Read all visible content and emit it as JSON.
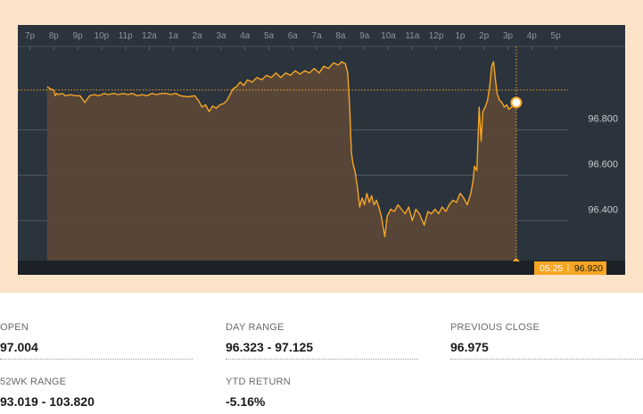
{
  "chart_data": {
    "type": "line",
    "x_ticks": [
      "7p",
      "8p",
      "9p",
      "10p",
      "11p",
      "12a",
      "1a",
      "2a",
      "3a",
      "4a",
      "5a",
      "6a",
      "7a",
      "8a",
      "9a",
      "10a",
      "11a",
      "12p",
      "1p",
      "2p",
      "3p",
      "4p",
      "5p"
    ],
    "y_ticks": [
      "96.800",
      "96.600",
      "96.400"
    ],
    "ylim": [
      96.24,
      97.12
    ],
    "reference_line": 96.975,
    "last_time": "05:25",
    "last_value": "96.920",
    "grid": true,
    "series": [
      {
        "color": "#f5a623",
        "points": [
          [
            0.72,
            96.99
          ],
          [
            0.85,
            96.98
          ],
          [
            1.0,
            96.975
          ],
          [
            1.06,
            96.95
          ],
          [
            1.12,
            96.96
          ],
          [
            1.2,
            96.955
          ],
          [
            1.35,
            96.96
          ],
          [
            1.5,
            96.95
          ],
          [
            1.7,
            96.955
          ],
          [
            1.9,
            96.95
          ],
          [
            2.1,
            96.95
          ],
          [
            2.3,
            96.92
          ],
          [
            2.5,
            96.95
          ],
          [
            2.7,
            96.955
          ],
          [
            2.9,
            96.95
          ],
          [
            3.1,
            96.96
          ],
          [
            3.3,
            96.955
          ],
          [
            3.5,
            96.96
          ],
          [
            3.7,
            96.955
          ],
          [
            3.9,
            96.96
          ],
          [
            4.1,
            96.955
          ],
          [
            4.3,
            96.96
          ],
          [
            4.5,
            96.95
          ],
          [
            4.7,
            96.955
          ],
          [
            4.9,
            96.95
          ],
          [
            5.1,
            96.96
          ],
          [
            5.3,
            96.955
          ],
          [
            5.5,
            96.96
          ],
          [
            5.7,
            96.96
          ],
          [
            5.9,
            96.955
          ],
          [
            6.1,
            96.96
          ],
          [
            6.3,
            96.95
          ],
          [
            6.6,
            96.945
          ],
          [
            6.9,
            96.95
          ],
          [
            7.05,
            96.93
          ],
          [
            7.2,
            96.9
          ],
          [
            7.35,
            96.91
          ],
          [
            7.5,
            96.88
          ],
          [
            7.65,
            96.905
          ],
          [
            7.8,
            96.895
          ],
          [
            7.95,
            96.91
          ],
          [
            8.1,
            96.915
          ],
          [
            8.25,
            96.93
          ],
          [
            8.35,
            96.95
          ],
          [
            8.5,
            96.98
          ],
          [
            8.65,
            96.99
          ],
          [
            8.8,
            97.01
          ],
          [
            8.95,
            96.995
          ],
          [
            9.1,
            97.02
          ],
          [
            9.3,
            97.01
          ],
          [
            9.5,
            97.03
          ],
          [
            9.7,
            97.02
          ],
          [
            9.9,
            97.04
          ],
          [
            10.1,
            97.03
          ],
          [
            10.3,
            97.05
          ],
          [
            10.5,
            97.03
          ],
          [
            10.7,
            97.05
          ],
          [
            10.9,
            97.04
          ],
          [
            11.1,
            97.06
          ],
          [
            11.3,
            97.045
          ],
          [
            11.5,
            97.06
          ],
          [
            11.7,
            97.05
          ],
          [
            11.9,
            97.07
          ],
          [
            12.1,
            97.05
          ],
          [
            12.3,
            97.08
          ],
          [
            12.5,
            97.07
          ],
          [
            12.7,
            97.095
          ],
          [
            12.9,
            97.085
          ],
          [
            13.05,
            97.1
          ],
          [
            13.2,
            97.09
          ],
          [
            13.3,
            97.05
          ],
          [
            13.38,
            96.9
          ],
          [
            13.45,
            96.7
          ],
          [
            13.52,
            96.65
          ],
          [
            13.6,
            96.62
          ],
          [
            13.7,
            96.55
          ],
          [
            13.8,
            96.46
          ],
          [
            13.9,
            96.5
          ],
          [
            14.0,
            96.47
          ],
          [
            14.1,
            96.52
          ],
          [
            14.2,
            96.48
          ],
          [
            14.3,
            96.51
          ],
          [
            14.4,
            96.47
          ],
          [
            14.5,
            96.49
          ],
          [
            14.6,
            96.46
          ],
          [
            14.7,
            96.42
          ],
          [
            14.8,
            96.36
          ],
          [
            14.85,
            96.33
          ],
          [
            14.95,
            96.42
          ],
          [
            15.1,
            96.45
          ],
          [
            15.25,
            96.44
          ],
          [
            15.4,
            96.47
          ],
          [
            15.55,
            96.45
          ],
          [
            15.7,
            96.43
          ],
          [
            15.85,
            96.46
          ],
          [
            16.0,
            96.4
          ],
          [
            16.15,
            96.45
          ],
          [
            16.3,
            96.43
          ],
          [
            16.5,
            96.38
          ],
          [
            16.65,
            96.44
          ],
          [
            16.8,
            96.43
          ],
          [
            16.95,
            96.45
          ],
          [
            17.1,
            96.43
          ],
          [
            17.25,
            96.46
          ],
          [
            17.4,
            96.44
          ],
          [
            17.55,
            96.47
          ],
          [
            17.7,
            96.49
          ],
          [
            17.85,
            96.48
          ],
          [
            18.0,
            96.52
          ],
          [
            18.15,
            96.5
          ],
          [
            18.3,
            96.47
          ],
          [
            18.45,
            96.52
          ],
          [
            18.55,
            96.58
          ],
          [
            18.6,
            96.64
          ],
          [
            18.7,
            96.62
          ],
          [
            18.8,
            96.9
          ],
          [
            18.88,
            96.75
          ],
          [
            18.95,
            96.88
          ],
          [
            19.05,
            96.9
          ],
          [
            19.15,
            96.93
          ],
          [
            19.25,
            97.0
          ],
          [
            19.32,
            97.08
          ],
          [
            19.4,
            97.1
          ],
          [
            19.48,
            97.02
          ],
          [
            19.55,
            96.96
          ],
          [
            19.65,
            96.93
          ],
          [
            19.75,
            96.92
          ],
          [
            19.85,
            96.9
          ],
          [
            19.95,
            96.91
          ],
          [
            20.05,
            96.89
          ],
          [
            20.15,
            96.9
          ],
          [
            20.25,
            96.915
          ],
          [
            20.35,
            96.92
          ]
        ]
      }
    ]
  },
  "stats": {
    "open_label": "OPEN",
    "open_value": "97.004",
    "day_range_label": "DAY RANGE",
    "day_range_value": "96.323 - 97.125",
    "prev_close_label": "PREVIOUS CLOSE",
    "prev_close_value": "96.975",
    "wk52_label": "52WK RANGE",
    "wk52_value": "93.019 - 103.820",
    "ytd_label": "YTD RETURN",
    "ytd_value": "-5.16%"
  }
}
